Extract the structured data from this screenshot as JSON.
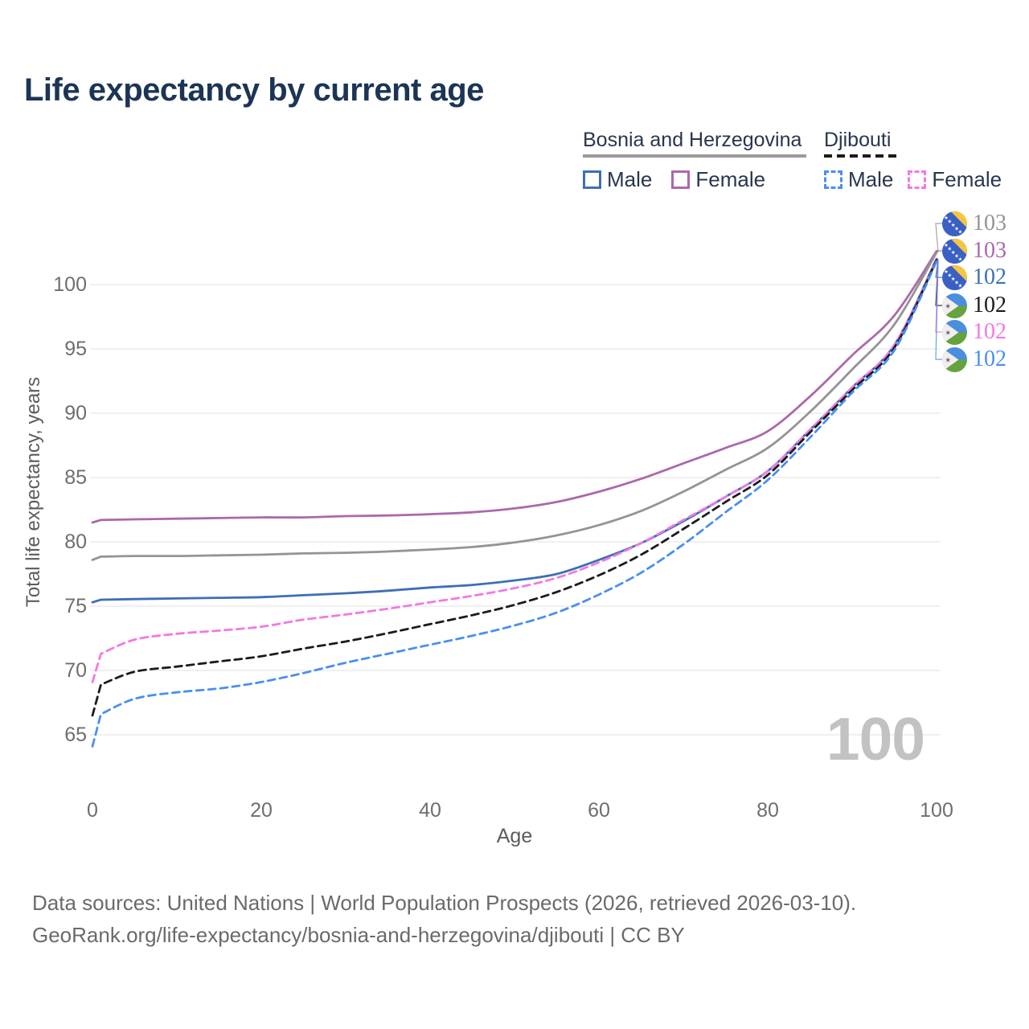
{
  "title": "Life expectancy by current age",
  "legend": {
    "groups": [
      {
        "name": "Bosnia and Herzegovina",
        "line_style": "solid",
        "rule_color": "#9a9a9a",
        "items": [
          {
            "label": "Male",
            "color": "#3d6fb6",
            "dashed": false
          },
          {
            "label": "Female",
            "color": "#ac68ac",
            "dashed": false
          }
        ]
      },
      {
        "name": "Djibouti",
        "line_style": "dashed",
        "rule_color": "#1b1b1b",
        "items": [
          {
            "label": "Male",
            "color": "#4a8ff0",
            "dashed": true
          },
          {
            "label": "Female",
            "color": "#f279e2",
            "dashed": true
          }
        ]
      }
    ]
  },
  "watermark": "100",
  "footer": {
    "line1": "Data sources: United Nations | World Population Prospects (2026, retrieved 2026-03-10).",
    "line2": "GeoRank.org/life-expectancy/bosnia-and-herzegovina/djibouti | CC BY"
  },
  "flags": {
    "ba": {
      "name": "bosnia-flag-icon",
      "blue": "#3a5fc5",
      "yellow": "#f6c73c",
      "star": "#ffffff"
    },
    "dj": {
      "name": "djibouti-flag-icon",
      "blue": "#4a8ee0",
      "green": "#66a33e",
      "triangle": "#f2eeee",
      "star": "#6f6680"
    }
  },
  "chart_data": {
    "type": "line",
    "title": "Life expectancy by current age",
    "xlabel": "Age",
    "ylabel": "Total life expectancy, years",
    "xlim": [
      0,
      100
    ],
    "ylim": [
      63,
      104
    ],
    "x_ticks": [
      0,
      20,
      40,
      60,
      80,
      100
    ],
    "y_ticks": [
      65,
      70,
      75,
      80,
      85,
      90,
      95,
      100
    ],
    "grid": true,
    "legend_position": "top-right",
    "x": [
      0,
      1,
      5,
      10,
      15,
      20,
      25,
      30,
      35,
      40,
      45,
      50,
      55,
      60,
      65,
      70,
      75,
      80,
      85,
      90,
      95,
      100
    ],
    "series": [
      {
        "name": "Bosnia and Herzegovina Female",
        "color": "#ac68ac",
        "dash": "solid",
        "end_value": 103,
        "values": [
          81.5,
          81.7,
          81.75,
          81.8,
          81.85,
          81.9,
          81.9,
          82.0,
          82.05,
          82.15,
          82.3,
          82.6,
          83.1,
          83.9,
          84.9,
          86.1,
          87.3,
          88.6,
          91.3,
          94.5,
          97.6,
          102.6
        ]
      },
      {
        "name": "Bosnia and Herzegovina Total",
        "color": "#949494",
        "dash": "solid",
        "end_value": 103,
        "values": [
          78.6,
          78.85,
          78.9,
          78.9,
          78.95,
          79.0,
          79.1,
          79.15,
          79.25,
          79.4,
          79.6,
          79.95,
          80.5,
          81.3,
          82.4,
          83.9,
          85.6,
          87.3,
          90.1,
          93.4,
          96.9,
          102.5
        ]
      },
      {
        "name": "Bosnia and Herzegovina Male",
        "color": "#3d6fb6",
        "dash": "solid",
        "end_value": 102,
        "values": [
          75.3,
          75.5,
          75.55,
          75.6,
          75.65,
          75.7,
          75.85,
          76.0,
          76.2,
          76.45,
          76.65,
          77.0,
          77.5,
          78.6,
          79.9,
          81.6,
          83.5,
          85.5,
          88.7,
          92.0,
          95.3,
          102.0
        ]
      },
      {
        "name": "Djibouti Female",
        "color": "#f279e2",
        "dash": "dashed",
        "end_value": 102,
        "values": [
          69.1,
          71.3,
          72.4,
          72.85,
          73.1,
          73.4,
          73.95,
          74.35,
          74.8,
          75.3,
          75.8,
          76.4,
          77.2,
          78.4,
          79.9,
          81.7,
          83.5,
          85.5,
          88.7,
          92.0,
          95.3,
          101.95
        ]
      },
      {
        "name": "Djibouti Total",
        "color": "#1b1b1b",
        "dash": "dashed",
        "end_value": 102,
        "values": [
          66.5,
          68.9,
          69.9,
          70.3,
          70.7,
          71.1,
          71.7,
          72.25,
          72.9,
          73.6,
          74.3,
          75.1,
          76.1,
          77.4,
          79.0,
          81.0,
          83.1,
          85.2,
          88.5,
          91.8,
          95.1,
          101.9
        ]
      },
      {
        "name": "Djibouti Male",
        "color": "#4a8ff0",
        "dash": "dashed",
        "end_value": 102,
        "values": [
          64.1,
          66.6,
          67.8,
          68.3,
          68.6,
          69.1,
          69.8,
          70.6,
          71.3,
          72.0,
          72.7,
          73.5,
          74.5,
          75.9,
          77.6,
          79.8,
          82.3,
          84.8,
          88.1,
          91.6,
          94.9,
          101.8
        ]
      }
    ],
    "end_labels": [
      {
        "text": "103",
        "color": "#949494",
        "flag": "ba",
        "series_index": 1
      },
      {
        "text": "103",
        "color": "#ac68ac",
        "flag": "ba",
        "series_index": 0
      },
      {
        "text": "102",
        "color": "#3d6fb6",
        "flag": "ba",
        "series_index": 2
      },
      {
        "text": "102",
        "color": "#1b1b1b",
        "flag": "dj",
        "series_index": 4
      },
      {
        "text": "102",
        "color": "#f279e2",
        "flag": "dj",
        "series_index": 3
      },
      {
        "text": "102",
        "color": "#4a8ff0",
        "flag": "dj",
        "series_index": 5
      }
    ]
  }
}
